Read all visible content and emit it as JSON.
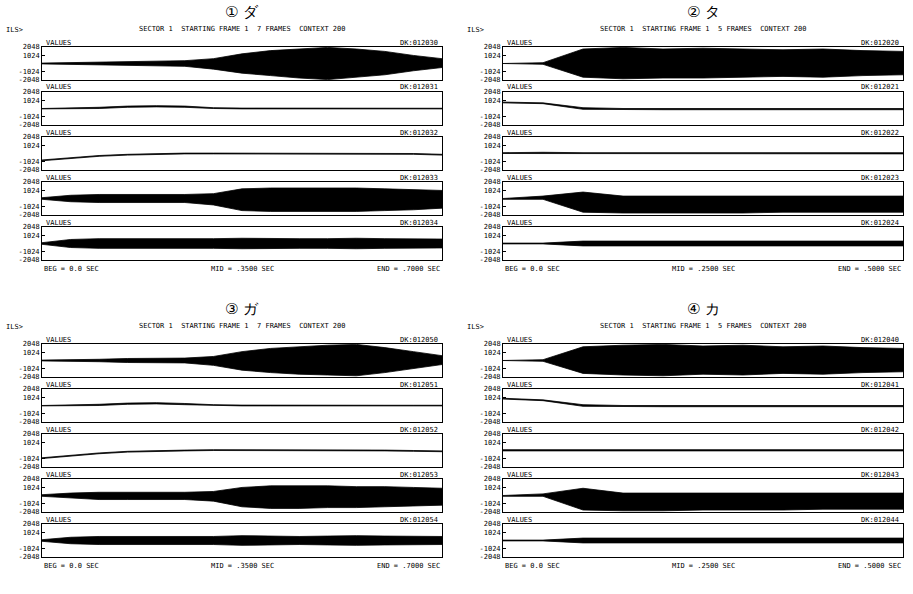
{
  "chart_data": [
    {
      "type": "band",
      "title": "① ダ",
      "subtitle": "SECTOR 1  STARTING FRAME 1  7 FRAMES  CONTEXT 200",
      "annotations": {
        "corner": "ILS>",
        "footer": [
          "BEG = 0.0 SEC",
          "MID = .3500 SEC",
          "END = .7000 SEC"
        ]
      },
      "color": "#000000",
      "tick_labels": "y",
      "grid": false,
      "x": [
        0,
        0.05,
        0.1,
        0.15,
        0.2,
        0.25,
        0.3,
        0.35,
        0.4,
        0.45,
        0.5,
        0.55,
        0.6,
        0.65,
        0.7
      ],
      "xlim": [
        0,
        0.7
      ],
      "ylim": [
        -2048,
        2048
      ],
      "yticks": [
        2048,
        1024,
        -1024,
        -2048
      ],
      "series": [
        {
          "name": "DK:012030",
          "label": "VALUES",
          "max": [
            50,
            100,
            200,
            250,
            300,
            350,
            600,
            1200,
            1600,
            1800,
            2000,
            1800,
            1500,
            1000,
            600
          ],
          "min": [
            -50,
            -100,
            -200,
            -250,
            -300,
            -350,
            -700,
            -1200,
            -1500,
            -1800,
            -2000,
            -1700,
            -1400,
            -900,
            -500
          ]
        },
        {
          "name": "DK:012031",
          "label": "VALUES",
          "max": [
            0,
            50,
            150,
            300,
            350,
            300,
            100,
            50,
            50,
            30,
            30,
            30,
            30,
            30,
            30
          ],
          "min": [
            -50,
            -50,
            0,
            150,
            200,
            150,
            0,
            -50,
            -50,
            -50,
            -50,
            -50,
            -50,
            -50,
            -50
          ]
        },
        {
          "name": "DK:012032",
          "label": "VALUES",
          "max": [
            -800,
            -500,
            -250,
            -100,
            0,
            50,
            50,
            50,
            50,
            50,
            50,
            50,
            30,
            0,
            -100
          ],
          "min": [
            -900,
            -600,
            -350,
            -200,
            -100,
            -50,
            -50,
            -50,
            -50,
            -50,
            -50,
            -50,
            -70,
            -100,
            -200
          ]
        },
        {
          "name": "DK:012033",
          "label": "VALUES",
          "max": [
            100,
            400,
            500,
            500,
            500,
            500,
            600,
            1200,
            1300,
            1300,
            1300,
            1300,
            1200,
            1100,
            1000
          ],
          "min": [
            -100,
            -400,
            -500,
            -500,
            -500,
            -500,
            -800,
            -1500,
            -1600,
            -1600,
            -1600,
            -1600,
            -1500,
            -1400,
            -1200
          ]
        },
        {
          "name": "DK:012034",
          "label": "VALUES",
          "max": [
            100,
            500,
            600,
            600,
            550,
            600,
            600,
            650,
            600,
            600,
            600,
            650,
            600,
            600,
            550
          ],
          "min": [
            -100,
            -500,
            -600,
            -600,
            -550,
            -600,
            -600,
            -650,
            -600,
            -600,
            -600,
            -650,
            -600,
            -600,
            -550
          ]
        }
      ]
    },
    {
      "type": "band",
      "title": "② タ",
      "subtitle": "SECTOR 1  STARTING FRAME 1  5 FRAMES  CONTEXT 200",
      "annotations": {
        "corner": "ILS>",
        "footer": [
          "BEG = 0.0 SEC",
          "MID = .2500 SEC",
          "END = .5000 SEC"
        ]
      },
      "color": "#000000",
      "tick_labels": "y",
      "grid": false,
      "x": [
        0,
        0.05,
        0.1,
        0.15,
        0.2,
        0.25,
        0.3,
        0.35,
        0.4,
        0.45,
        0.5
      ],
      "xlim": [
        0,
        0.5
      ],
      "ylim": [
        -2048,
        2048
      ],
      "yticks": [
        2048,
        1024,
        -1024,
        -2048
      ],
      "series": [
        {
          "name": "DK:012020",
          "label": "VALUES",
          "max": [
            0,
            100,
            1800,
            2000,
            1800,
            1900,
            1800,
            1700,
            1800,
            1600,
            1500
          ],
          "min": [
            0,
            -100,
            -1700,
            -1900,
            -1800,
            -1800,
            -1700,
            -1600,
            -1700,
            -1500,
            -1400
          ]
        },
        {
          "name": "DK:012021",
          "label": "VALUES",
          "max": [
            800,
            700,
            100,
            0,
            0,
            0,
            0,
            0,
            0,
            0,
            0
          ],
          "min": [
            700,
            600,
            -100,
            -150,
            -150,
            -150,
            -150,
            -150,
            -150,
            -150,
            -150
          ]
        },
        {
          "name": "DK:012022",
          "label": "VALUES",
          "max": [
            100,
            150,
            100,
            100,
            100,
            100,
            100,
            100,
            100,
            100,
            100
          ],
          "min": [
            0,
            0,
            -50,
            -50,
            -50,
            -50,
            -50,
            -50,
            -50,
            -50,
            -50
          ]
        },
        {
          "name": "DK:012023",
          "label": "VALUES",
          "max": [
            0,
            300,
            800,
            300,
            300,
            300,
            300,
            300,
            300,
            300,
            300
          ],
          "min": [
            -100,
            -100,
            -1700,
            -1800,
            -1800,
            -1800,
            -1800,
            -1700,
            -1700,
            -1700,
            -1700
          ]
        },
        {
          "name": "DK:012024",
          "label": "VALUES",
          "max": [
            50,
            50,
            300,
            300,
            300,
            300,
            300,
            300,
            300,
            300,
            300
          ],
          "min": [
            -50,
            -50,
            -300,
            -300,
            -300,
            -300,
            -300,
            -300,
            -300,
            -300,
            -300
          ]
        }
      ]
    },
    {
      "type": "band",
      "title": "③ ガ",
      "subtitle": "SECTOR 1  STARTING FRAME 1  7 FRAMES  CONTEXT 200",
      "annotations": {
        "corner": "ILS>",
        "footer": [
          "BEG = 0.0 SEC",
          "MID = .3500 SEC",
          "END = .7000 SEC"
        ]
      },
      "color": "#000000",
      "tick_labels": "y",
      "grid": false,
      "x": [
        0,
        0.05,
        0.1,
        0.15,
        0.2,
        0.25,
        0.3,
        0.35,
        0.4,
        0.45,
        0.5,
        0.55,
        0.6,
        0.65,
        0.7
      ],
      "xlim": [
        0,
        0.7
      ],
      "ylim": [
        -2048,
        2048
      ],
      "yticks": [
        2048,
        1024,
        -1024,
        -2048
      ],
      "series": [
        {
          "name": "DK:012050",
          "label": "VALUES",
          "max": [
            50,
            80,
            150,
            250,
            300,
            300,
            500,
            1100,
            1500,
            1700,
            1900,
            2000,
            1600,
            1100,
            600
          ],
          "min": [
            -50,
            -80,
            -150,
            -250,
            -300,
            -300,
            -600,
            -1200,
            -1500,
            -1700,
            -1800,
            -1900,
            -1500,
            -1000,
            -500
          ]
        },
        {
          "name": "DK:012051",
          "label": "VALUES",
          "max": [
            0,
            50,
            150,
            300,
            350,
            250,
            100,
            50,
            30,
            30,
            30,
            30,
            30,
            30,
            30
          ],
          "min": [
            -50,
            -50,
            0,
            150,
            200,
            100,
            0,
            -50,
            -50,
            -50,
            -50,
            -50,
            -50,
            -50,
            -50
          ]
        },
        {
          "name": "DK:012052",
          "label": "VALUES",
          "max": [
            -900,
            -600,
            -300,
            -100,
            0,
            50,
            100,
            100,
            100,
            100,
            100,
            50,
            50,
            0,
            -50
          ],
          "min": [
            -1000,
            -700,
            -400,
            -200,
            -100,
            -50,
            0,
            0,
            0,
            0,
            0,
            -50,
            -50,
            -100,
            -150
          ]
        },
        {
          "name": "DK:012053",
          "label": "VALUES",
          "max": [
            100,
            300,
            400,
            400,
            400,
            400,
            500,
            1000,
            1200,
            1200,
            1200,
            1100,
            1100,
            1000,
            900
          ],
          "min": [
            -100,
            -300,
            -500,
            -500,
            -500,
            -500,
            -700,
            -1400,
            -1600,
            -1600,
            -1500,
            -1500,
            -1400,
            -1300,
            -1200
          ]
        },
        {
          "name": "DK:012054",
          "label": "VALUES",
          "max": [
            100,
            400,
            500,
            500,
            500,
            550,
            500,
            600,
            550,
            500,
            550,
            600,
            550,
            500,
            500
          ],
          "min": [
            -100,
            -400,
            -500,
            -500,
            -500,
            -550,
            -500,
            -600,
            -550,
            -500,
            -550,
            -600,
            -550,
            -500,
            -500
          ]
        }
      ]
    },
    {
      "type": "band",
      "title": "④ カ",
      "subtitle": "SECTOR 1  STARTING FRAME 1  5 FRAMES  CONTEXT 200",
      "annotations": {
        "corner": "ILS>",
        "footer": [
          "BEG = 0.0 SEC",
          "MID = .2500 SEC",
          "END = .5000 SEC"
        ]
      },
      "color": "#000000",
      "tick_labels": "y",
      "grid": false,
      "x": [
        0,
        0.05,
        0.1,
        0.15,
        0.2,
        0.25,
        0.3,
        0.35,
        0.4,
        0.45,
        0.5
      ],
      "xlim": [
        0,
        0.5
      ],
      "ylim": [
        -2048,
        2048
      ],
      "yticks": [
        2048,
        1024,
        -1024,
        -2048
      ],
      "series": [
        {
          "name": "DK:012040",
          "label": "VALUES",
          "max": [
            0,
            100,
            1700,
            1900,
            2000,
            1800,
            1900,
            1700,
            1800,
            1600,
            1500
          ],
          "min": [
            0,
            -100,
            -1600,
            -1800,
            -1900,
            -1700,
            -1800,
            -1600,
            -1700,
            -1500,
            -1400
          ]
        },
        {
          "name": "DK:012041",
          "label": "VALUES",
          "max": [
            900,
            700,
            100,
            0,
            0,
            0,
            0,
            0,
            0,
            0,
            0
          ],
          "min": [
            800,
            600,
            -100,
            -150,
            -150,
            -150,
            -150,
            -150,
            -150,
            -150,
            -150
          ]
        },
        {
          "name": "DK:012042",
          "label": "VALUES",
          "max": [
            100,
            100,
            100,
            100,
            100,
            100,
            100,
            100,
            100,
            100,
            100
          ],
          "min": [
            -50,
            -50,
            -50,
            -50,
            -50,
            -50,
            -50,
            -50,
            -50,
            -50,
            -50
          ]
        },
        {
          "name": "DK:012043",
          "label": "VALUES",
          "max": [
            0,
            200,
            900,
            300,
            300,
            300,
            300,
            300,
            300,
            300,
            300
          ],
          "min": [
            -100,
            -100,
            -1800,
            -1900,
            -1900,
            -1800,
            -1800,
            -1800,
            -1700,
            -1700,
            -1700
          ]
        },
        {
          "name": "DK:012044",
          "label": "VALUES",
          "max": [
            50,
            50,
            300,
            300,
            300,
            300,
            300,
            300,
            300,
            300,
            300
          ],
          "min": [
            -50,
            -50,
            -300,
            -300,
            -300,
            -300,
            -300,
            -300,
            -300,
            -300,
            -300
          ]
        }
      ]
    }
  ]
}
